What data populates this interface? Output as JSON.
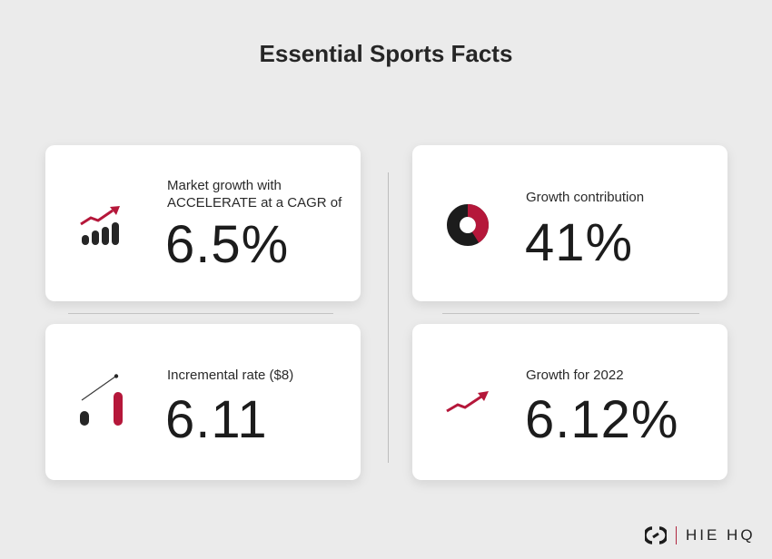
{
  "title": "Essential Sports Facts",
  "colors": {
    "accent": "#b5173a",
    "dark": "#262626",
    "background": "#ebebeb"
  },
  "cards": [
    {
      "icon": "growth-bars-icon",
      "label_line1": "Market growth with",
      "label_line2": "ACCELERATE at a CAGR of",
      "value": "6.5%"
    },
    {
      "icon": "donut-chart-icon",
      "label": "Growth contribution",
      "value": "41%",
      "donut_share": 0.41
    },
    {
      "icon": "incremental-bars-icon",
      "label": "Incremental rate ($8)",
      "value": "6.11"
    },
    {
      "icon": "trend-arrow-icon",
      "label": "Growth for 2022",
      "value": "6.12%"
    }
  ],
  "brand": {
    "name": "HIE HQ"
  }
}
